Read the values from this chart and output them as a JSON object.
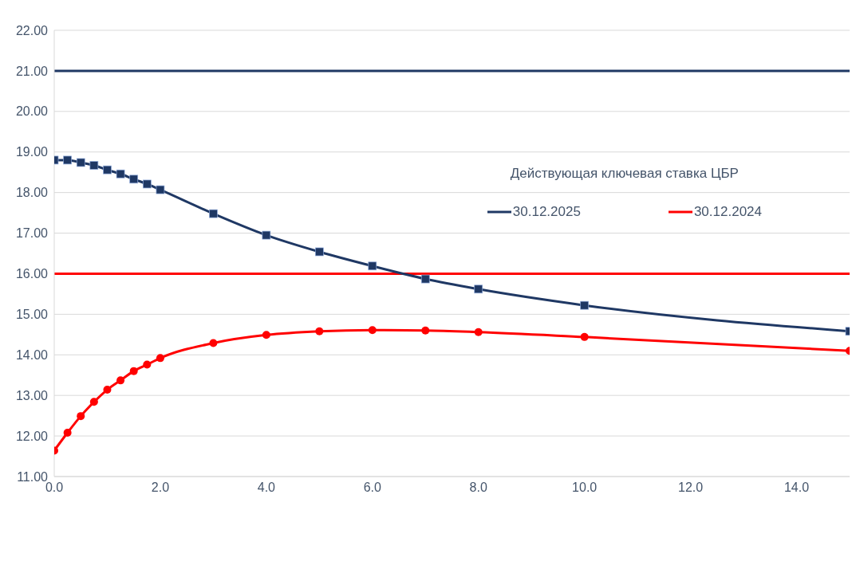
{
  "chart_data": {
    "type": "line",
    "legend_title": "Действующая ключевая ставка ЦБР",
    "x": [
      0,
      0.25,
      0.5,
      0.75,
      1,
      1.25,
      1.5,
      1.75,
      2,
      3,
      4,
      5,
      6,
      7,
      8,
      10,
      15
    ],
    "series": [
      {
        "name": "30.12.2025",
        "color": "#1f3864",
        "marker": "square",
        "values": [
          18.8,
          18.8,
          18.74,
          18.67,
          18.56,
          18.46,
          18.33,
          18.21,
          18.07,
          17.48,
          16.95,
          16.54,
          16.19,
          15.87,
          15.62,
          15.22,
          14.58
        ]
      },
      {
        "name": "30.12.2024",
        "color": "#ff0000",
        "marker": "circle",
        "values": [
          11.64,
          12.08,
          12.49,
          12.84,
          13.14,
          13.37,
          13.6,
          13.76,
          13.92,
          14.29,
          14.49,
          14.58,
          14.61,
          14.6,
          14.56,
          14.44,
          14.1
        ]
      }
    ],
    "ref_lines": [
      {
        "axis": "y",
        "value": 21,
        "label": null,
        "color": "#1f3864"
      },
      {
        "axis": "y",
        "value": 16,
        "label": null,
        "color": "#ff0000"
      }
    ],
    "xlim": [
      0,
      15
    ],
    "xticks": [
      {
        "value": 0,
        "label": "0.0"
      },
      {
        "value": 2,
        "label": "2.0"
      },
      {
        "value": 4,
        "label": "4.0"
      },
      {
        "value": 6,
        "label": "6.0"
      },
      {
        "value": 8,
        "label": "8.0"
      },
      {
        "value": 10,
        "label": "10.0"
      },
      {
        "value": 12,
        "label": "12.0"
      },
      {
        "value": 14,
        "label": "14.0"
      }
    ],
    "ylim": [
      11,
      22
    ],
    "yticks": [
      {
        "value": 11,
        "label": "11.00"
      },
      {
        "value": 12,
        "label": "12.00"
      },
      {
        "value": 13,
        "label": "13.00"
      },
      {
        "value": 14,
        "label": "14.00"
      },
      {
        "value": 15,
        "label": "15.00"
      },
      {
        "value": 16,
        "label": "16.00"
      },
      {
        "value": 17,
        "label": "17.00"
      },
      {
        "value": 18,
        "label": "18.00"
      },
      {
        "value": 19,
        "label": "19.00"
      },
      {
        "value": 20,
        "label": "20.00"
      },
      {
        "value": 21,
        "label": "21.00"
      },
      {
        "value": 22,
        "label": "22.00"
      }
    ],
    "grid": "y",
    "legend": "right",
    "line_style": "solid"
  }
}
